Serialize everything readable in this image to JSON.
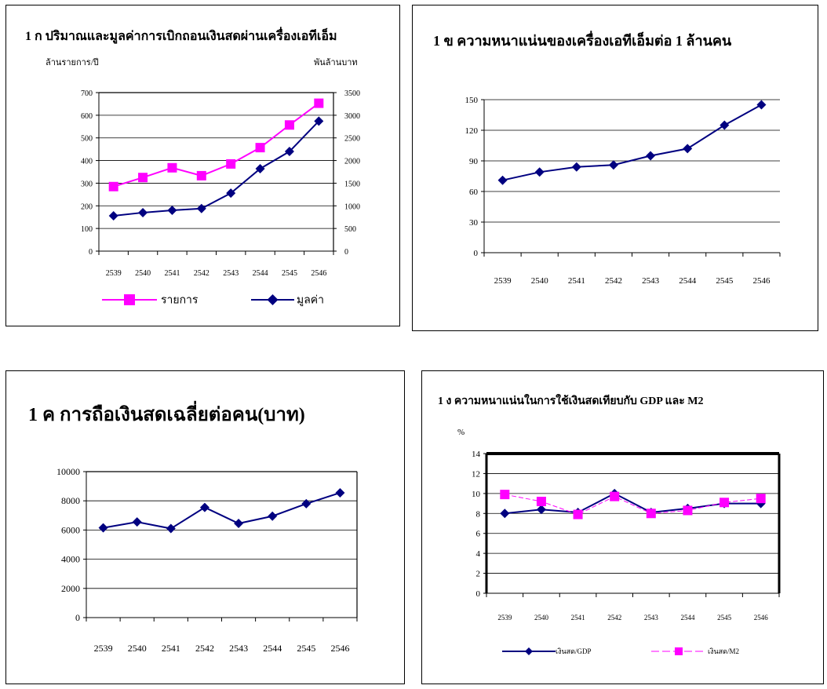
{
  "chart_data": [
    {
      "id": "atm",
      "type": "line",
      "title": "1 ก ปริมาณและมูลค่าการเบิกถอนเงินสดผ่านเครื่องเอทีเอ็ม",
      "ylabel": "ล้านรายการ/ปี",
      "y2label": "พันล้านบาท",
      "categories": [
        "2539",
        "2540",
        "2541",
        "2542",
        "2543",
        "2544",
        "2545",
        "2546"
      ],
      "ylim": [
        0,
        700
      ],
      "yticks": [
        "0",
        "100",
        "200",
        "300",
        "400",
        "500",
        "600",
        "700"
      ],
      "y2lim": [
        0,
        3500
      ],
      "y2ticks": [
        "0",
        "500",
        "1000",
        "1500",
        "2000",
        "2500",
        "3000",
        "3500"
      ],
      "series": [
        {
          "name": "รายการ",
          "axis": "left",
          "color": "#ff00ff",
          "marker": "square",
          "values": [
            285,
            325,
            368,
            333,
            385,
            457,
            557,
            653
          ]
        },
        {
          "name": "มูลค่า",
          "axis": "right",
          "color": "#000080",
          "marker": "diamond",
          "values": [
            780,
            850,
            900,
            940,
            1280,
            1820,
            2200,
            2870
          ]
        }
      ],
      "grid": true
    },
    {
      "id": "density",
      "type": "line",
      "title": "1 ข ความหนาแน่นของเครื่องเอทีเอ็มต่อ 1 ล้านคน",
      "categories": [
        "2539",
        "2540",
        "2541",
        "2542",
        "2543",
        "2544",
        "2545",
        "2546"
      ],
      "ylim": [
        0,
        150
      ],
      "yticks": [
        "0",
        "30",
        "60",
        "90",
        "120",
        "150"
      ],
      "series": [
        {
          "color": "#000080",
          "marker": "diamond",
          "values": [
            71,
            79,
            84,
            86,
            95,
            102,
            125,
            145
          ]
        }
      ],
      "grid": true
    },
    {
      "id": "cash",
      "type": "line",
      "title": "1 ค การถือเงินสดเฉลี่ยต่อคน(บาท)",
      "categories": [
        "2539",
        "2540",
        "2541",
        "2542",
        "2543",
        "2544",
        "2545",
        "2546"
      ],
      "ylim": [
        0,
        10000
      ],
      "yticks": [
        "0",
        "2000",
        "4000",
        "6000",
        "8000",
        "10000"
      ],
      "series": [
        {
          "color": "#000080",
          "marker": "diamond",
          "values": [
            6150,
            6550,
            6100,
            7550,
            6450,
            6950,
            7800,
            8550
          ]
        }
      ],
      "grid": true
    },
    {
      "id": "ratio",
      "type": "line",
      "title": "1 ง ความหนาแน่นในการใช้เงินสดเทียบกับ GDP และ M2",
      "ylabel": "%",
      "categories": [
        "2539",
        "2540",
        "2541",
        "2542",
        "2543",
        "2544",
        "2545",
        "2546"
      ],
      "ylim": [
        0,
        14
      ],
      "yticks": [
        "0",
        "2",
        "4",
        "6",
        "8",
        "10",
        "12",
        "14"
      ],
      "series": [
        {
          "name": "เงินสด/GDP",
          "color": "#000080",
          "marker": "diamond",
          "values": [
            8.0,
            8.4,
            8.1,
            10.0,
            8.1,
            8.5,
            9.0,
            9.0
          ]
        },
        {
          "name": "เงินสด/M2",
          "color": "#ff00ff",
          "marker": "square",
          "dashed": true,
          "values": [
            9.9,
            9.2,
            7.9,
            9.7,
            8.0,
            8.3,
            9.1,
            9.5
          ]
        }
      ],
      "grid": true
    }
  ]
}
